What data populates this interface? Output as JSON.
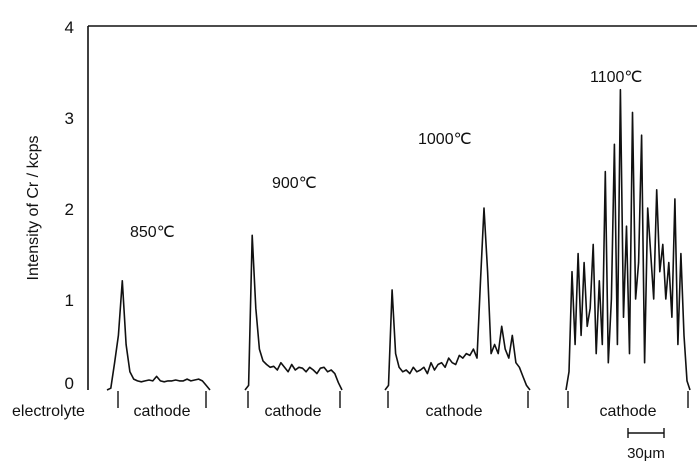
{
  "chart_data": {
    "type": "line",
    "title": "",
    "ylabel": "Intensity of Cr / kcps",
    "ylim": [
      0,
      4
    ],
    "yticks": [
      0,
      1,
      2,
      3,
      4
    ],
    "grid": false,
    "legend": "none",
    "line_color": "#111111",
    "x_region_labels": [
      "electrolyte",
      "cathode",
      "cathode",
      "cathode",
      "cathode"
    ],
    "scale_bar": {
      "label": "30μm",
      "length_um": 30
    },
    "series": [
      {
        "name": "850℃",
        "values": [
          0,
          0.02,
          0.3,
          0.6,
          1.2,
          0.5,
          0.2,
          0.12,
          0.1,
          0.09,
          0.1,
          0.11,
          0.1,
          0.15,
          0.1,
          0.09,
          0.1,
          0.1,
          0.11,
          0.1,
          0.1,
          0.12,
          0.1,
          0.11,
          0.12,
          0.1,
          0.05,
          0
        ]
      },
      {
        "name": "900℃",
        "values": [
          0,
          0.05,
          1.7,
          0.9,
          0.45,
          0.32,
          0.28,
          0.25,
          0.26,
          0.22,
          0.3,
          0.25,
          0.2,
          0.28,
          0.22,
          0.25,
          0.24,
          0.2,
          0.25,
          0.22,
          0.18,
          0.24,
          0.25,
          0.2,
          0.22,
          0.18,
          0.08,
          0
        ]
      },
      {
        "name": "1000℃",
        "values": [
          0,
          0.05,
          1.1,
          0.4,
          0.25,
          0.2,
          0.22,
          0.18,
          0.25,
          0.2,
          0.22,
          0.25,
          0.18,
          0.3,
          0.22,
          0.28,
          0.3,
          0.25,
          0.35,
          0.3,
          0.28,
          0.38,
          0.35,
          0.4,
          0.38,
          0.45,
          0.35,
          1.2,
          2.0,
          1.3,
          0.4,
          0.5,
          0.4,
          0.7,
          0.45,
          0.35,
          0.6,
          0.3,
          0.25,
          0.15,
          0.05,
          0
        ]
      },
      {
        "name": "1100℃",
        "values": [
          0,
          0.2,
          1.3,
          0.5,
          1.5,
          0.6,
          1.4,
          0.7,
          0.9,
          1.6,
          0.4,
          1.2,
          0.5,
          2.4,
          0.3,
          1.0,
          2.7,
          0.5,
          3.3,
          0.8,
          1.8,
          0.4,
          3.05,
          1.0,
          1.4,
          2.8,
          0.3,
          2.0,
          1.5,
          1.0,
          2.2,
          1.3,
          1.6,
          1.0,
          1.4,
          0.8,
          2.1,
          0.5,
          1.5,
          0.6,
          0.1,
          0
        ]
      }
    ]
  }
}
